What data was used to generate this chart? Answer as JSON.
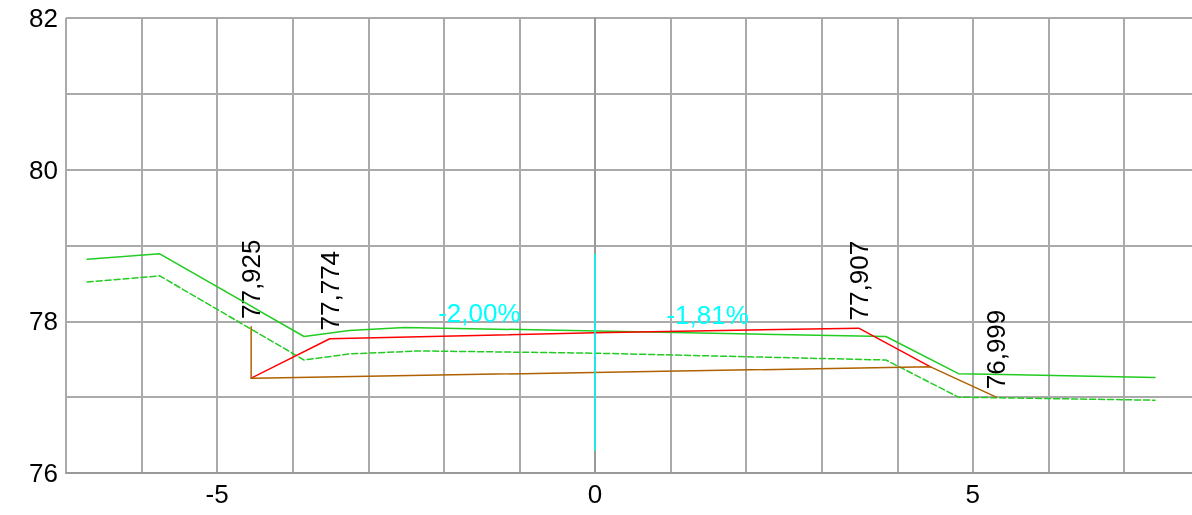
{
  "chart_data": {
    "type": "line",
    "xlim": [
      -7,
      7.9
    ],
    "ylim": [
      76,
      82
    ],
    "xticks": [
      {
        "value": -7,
        "label": null
      },
      {
        "value": -6,
        "label": null
      },
      -5,
      {
        "value": -4,
        "label": null
      },
      {
        "value": -3,
        "label": null
      },
      {
        "value": -2,
        "label": null
      },
      {
        "value": -1,
        "label": null
      },
      0,
      {
        "value": 1,
        "label": null
      },
      {
        "value": 2,
        "label": null
      },
      {
        "value": 3,
        "label": null
      },
      {
        "value": 4,
        "label": null
      },
      5,
      {
        "value": 6,
        "label": null
      },
      {
        "value": 7,
        "label": null
      }
    ],
    "yticks": [
      76,
      {
        "value": 77,
        "label": null
      },
      78,
      {
        "value": 79,
        "label": null
      },
      80,
      {
        "value": 81,
        "label": null
      },
      82
    ],
    "grid": true,
    "marker": "none",
    "series": [
      {
        "color": "#22cc22",
        "line_style": "solid",
        "x": [
          -6.72,
          -5.76,
          -3.85,
          -3.25,
          -2.52,
          3.85,
          4.81,
          7.41
        ],
        "values": [
          78.82,
          78.89,
          77.8,
          77.88,
          77.92,
          77.8,
          77.31,
          77.26
        ]
      },
      {
        "color": "#22cc22",
        "line_style": "dashed",
        "x": [
          -6.72,
          -5.76,
          -3.85,
          -3.25,
          -2.32,
          0,
          3.85,
          4.81,
          7.41
        ],
        "values": [
          78.52,
          78.6,
          77.49,
          77.57,
          77.61,
          77.58,
          77.49,
          77.0,
          76.96
        ]
      },
      {
        "color": "#ff0000",
        "line_style": "solid",
        "x": [
          -4.55,
          -3.51,
          0,
          3.49,
          4.44
        ],
        "values": [
          77.25,
          77.77,
          77.85,
          77.91,
          77.4
        ]
      },
      {
        "color": "#b06000",
        "line_style": "solid",
        "x": [
          -4.55,
          -4.55,
          4.44,
          5.31
        ],
        "values": [
          77.93,
          77.25,
          77.4,
          77.0
        ]
      },
      {
        "color": "#00ffff",
        "line_style": "solid",
        "x": [
          0,
          0
        ],
        "values": [
          78.88,
          76.3
        ]
      }
    ],
    "annotations": [
      {
        "text": "77,925",
        "x": -4.55,
        "y": 77.925
      },
      {
        "text": "77,774",
        "x": -3.51,
        "y": 77.774
      },
      {
        "text": "77,907",
        "x": 3.49,
        "y": 77.907
      },
      {
        "text": "76,999",
        "x": 5.31,
        "y": 76.999
      },
      {
        "text": "-2,00%",
        "x": -1.53,
        "y": 77.88
      },
      {
        "text": "-1,81%",
        "x": 1.49,
        "y": 77.86
      }
    ]
  }
}
